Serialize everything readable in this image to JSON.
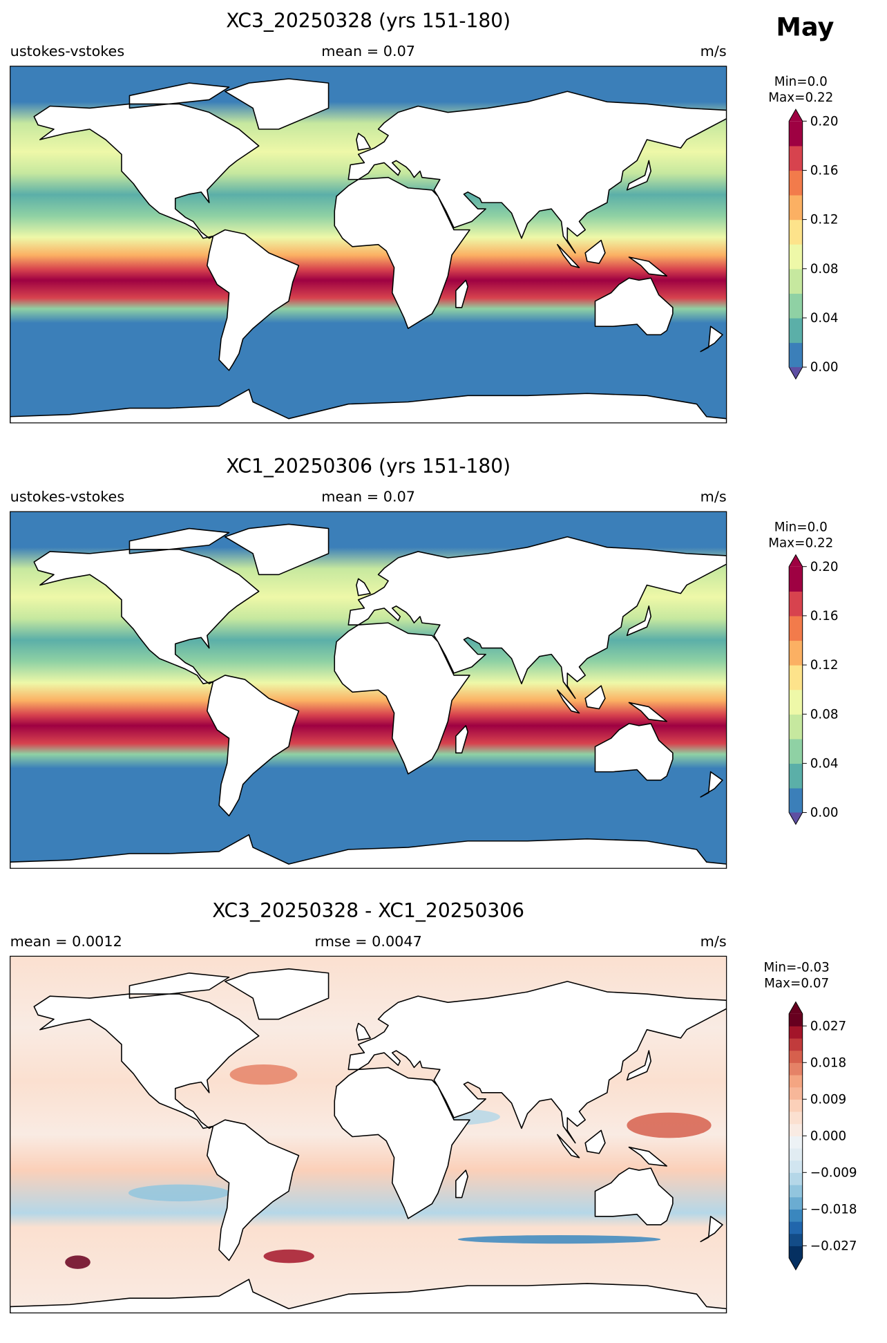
{
  "month": "May",
  "panels": [
    {
      "title": "XC3_20250328 (yrs 151-180)",
      "left_label": "ustokes-vstokes",
      "center_label": "mean = 0.07",
      "units": "m/s",
      "range_text": [
        "Min=0.0",
        "Max=0.22"
      ],
      "colorbar": {
        "lim": [
          0,
          0.2
        ],
        "ticks": [
          {
            "value": 0,
            "label": "0.00"
          },
          0.04,
          0.08,
          0.12,
          0.16,
          {
            "value": 0.2,
            "label": "0.20"
          }
        ],
        "colors": [
          "#3b7fb9",
          "#5bafa8",
          "#8fd1a4",
          "#c6e89f",
          "#eef8a8",
          "#fde38b",
          "#fbb063",
          "#f27b4b",
          "#d7434e",
          "#9e0142"
        ],
        "under": "#5e4fa2",
        "over": "#9e0142"
      }
    },
    {
      "title": "XC1_20250306 (yrs 151-180)",
      "left_label": "ustokes-vstokes",
      "center_label": "mean = 0.07",
      "units": "m/s",
      "range_text": [
        "Min=0.0",
        "Max=0.22"
      ],
      "colorbar": {
        "lim": [
          0,
          0.2
        ],
        "ticks": [
          {
            "value": 0,
            "label": "0.00"
          },
          0.04,
          0.08,
          0.12,
          0.16,
          {
            "value": 0.2,
            "label": "0.20"
          }
        ],
        "colors": [
          "#3b7fb9",
          "#5bafa8",
          "#8fd1a4",
          "#c6e89f",
          "#eef8a8",
          "#fde38b",
          "#fbb063",
          "#f27b4b",
          "#d7434e",
          "#9e0142"
        ],
        "under": "#5e4fa2",
        "over": "#9e0142"
      }
    },
    {
      "title": "XC3_20250328 - XC1_20250306",
      "left_label": "mean = 0.0012",
      "center_label": "rmse = 0.0047",
      "units": "m/s",
      "range_text": [
        "Min=-0.03",
        "Max=0.07"
      ],
      "colorbar": {
        "lim": [
          -0.03,
          0.03
        ],
        "ticks": [
          {
            "value": -0.027,
            "label": "−0.027"
          },
          {
            "value": -0.018,
            "label": "−0.018"
          },
          {
            "value": -0.009,
            "label": "−0.009"
          },
          {
            "value": 0,
            "label": "0.000"
          },
          0.009,
          0.018,
          0.027
        ],
        "colors": [
          "#053061",
          "#134c87",
          "#2166ac",
          "#3a87be",
          "#6bacd1",
          "#92c5de",
          "#b5d7e8",
          "#d1e5f0",
          "#e1ecf2",
          "#edf2f5",
          "#f9ebe3",
          "#fbe0d0",
          "#fbd0b9",
          "#f7b799",
          "#f4a582",
          "#e58267",
          "#d6604d",
          "#c13b3c",
          "#a3152a",
          "#67001f"
        ],
        "under": "#053061",
        "over": "#67001f"
      }
    }
  ]
}
